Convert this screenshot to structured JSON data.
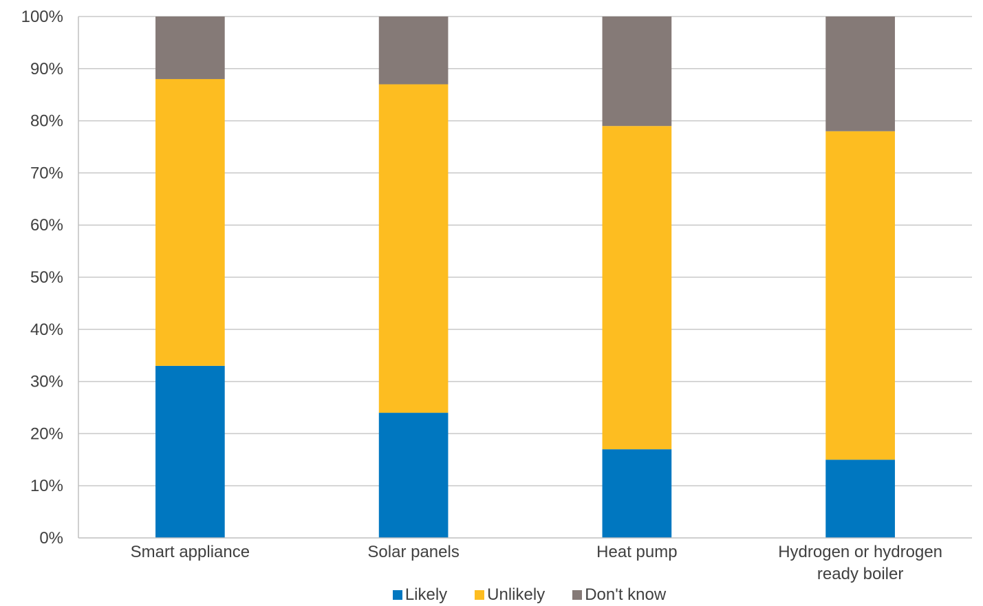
{
  "chart_data": {
    "type": "bar",
    "stacked": true,
    "categories": [
      "Smart appliance",
      "Solar panels",
      "Heat pump",
      "Hydrogen or hydrogen ready boiler"
    ],
    "series": [
      {
        "name": "Likely",
        "color": "#0077c0",
        "values": [
          33,
          24,
          17,
          15
        ]
      },
      {
        "name": "Unlikely",
        "color": "#fdbd21",
        "values": [
          55,
          63,
          62,
          63
        ]
      },
      {
        "name": "Don't know",
        "color": "#857a77",
        "values": [
          12,
          13,
          21,
          22
        ]
      }
    ],
    "y_ticks": [
      "0%",
      "10%",
      "20%",
      "30%",
      "40%",
      "50%",
      "60%",
      "70%",
      "80%",
      "90%",
      "100%"
    ],
    "ylim": [
      0,
      100
    ],
    "grid": true,
    "legend_position": "bottom"
  }
}
